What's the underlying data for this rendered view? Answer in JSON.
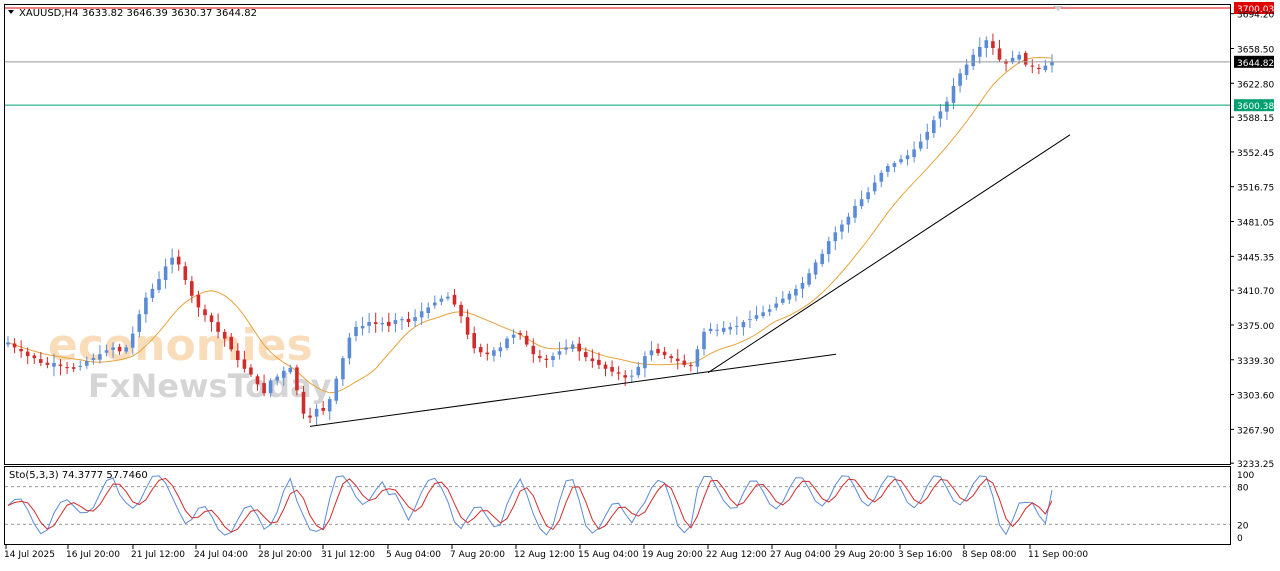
{
  "header": {
    "symbol": "XAUUSD,H4",
    "ohlc": "3633.82 3646.39 3630.37 3644.82"
  },
  "watermark": {
    "line1": "economies",
    "line2": "FxNewsToday"
  },
  "chart_data": {
    "type": "candlestick",
    "symbol": "XAUUSD",
    "timeframe": "H4",
    "grid": false,
    "price_axis": {
      "range": [
        3233.25,
        3700.03
      ],
      "ticks": [
        3694.2,
        3658.5,
        3622.8,
        3588.15,
        3552.45,
        3516.75,
        3481.05,
        3445.35,
        3410.7,
        3375.0,
        3339.3,
        3303.6,
        3267.9,
        3233.25
      ],
      "tick_labels": [
        "3694.20",
        "3658.50",
        "3622.80",
        "3588.15",
        "3552.45",
        "3516.75",
        "3481.05",
        "3445.35",
        "3410.70",
        "3375.00",
        "3339.30",
        "3303.60",
        "3267.90",
        "3233.25"
      ]
    },
    "time_axis": {
      "labels": [
        "14 Jul 2025",
        "16 Jul 20:00",
        "21 Jul 12:00",
        "24 Jul 04:00",
        "28 Jul 20:00",
        "31 Jul 12:00",
        "5 Aug 04:00",
        "7 Aug 20:00",
        "12 Aug 12:00",
        "15 Aug 04:00",
        "19 Aug 20:00",
        "22 Aug 12:00",
        "27 Aug 04:00",
        "29 Aug 20:00",
        "3 Sep 16:00",
        "8 Sep 08:00",
        "11 Sep 00:00"
      ]
    },
    "horizontal_lines": [
      {
        "price": 3700.03,
        "label": "3700.03",
        "color": "#e00000"
      },
      {
        "price": 3644.82,
        "label": "3644.82",
        "color": "#999999",
        "current": true
      },
      {
        "price": 3600.38,
        "label": "3600.38",
        "color": "#00a070"
      }
    ],
    "trendlines": [
      {
        "from": [
          "28 Jul 20:00",
          3271
        ],
        "to": [
          "22 Aug 12:00",
          3345
        ]
      },
      {
        "from": [
          "22 Aug 12:00",
          3326
        ],
        "to": [
          "11 Sep 00:00",
          3570
        ]
      }
    ],
    "moving_average_color": "#e8a33c",
    "bull_color": "#5b8bd6",
    "bear_color": "#d22b2b",
    "closes": [
      3357,
      3352,
      3348,
      3343,
      3341,
      3336,
      3334,
      3336,
      3333,
      3331,
      3330,
      3333,
      3338,
      3341,
      3345,
      3349,
      3352,
      3348,
      3352,
      3366,
      3386,
      3403,
      3412,
      3422,
      3435,
      3444,
      3437,
      3421,
      3405,
      3393,
      3385,
      3378,
      3368,
      3361,
      3350,
      3339,
      3330,
      3324,
      3314,
      3305,
      3318,
      3322,
      3328,
      3331,
      3308,
      3284,
      3280,
      3289,
      3287,
      3299,
      3320,
      3341,
      3362,
      3373,
      3374,
      3378,
      3376,
      3377,
      3374,
      3380,
      3381,
      3378,
      3383,
      3389,
      3393,
      3398,
      3402,
      3404,
      3396,
      3384,
      3365,
      3351,
      3347,
      3345,
      3349,
      3352,
      3361,
      3365,
      3365,
      3355,
      3345,
      3341,
      3339,
      3343,
      3348,
      3352,
      3355,
      3348,
      3342,
      3338,
      3334,
      3330,
      3327,
      3325,
      3321,
      3323,
      3332,
      3343,
      3349,
      3346,
      3344,
      3341,
      3338,
      3334,
      3333,
      3350,
      3368,
      3371,
      3370,
      3372,
      3373,
      3374,
      3378,
      3381,
      3385,
      3388,
      3391,
      3397,
      3402,
      3407,
      3412,
      3418,
      3428,
      3439,
      3448,
      3461,
      3470,
      3478,
      3486,
      3497,
      3504,
      3511,
      3521,
      3531,
      3538,
      3541,
      3545,
      3549,
      3555,
      3563,
      3573,
      3585,
      3594,
      3604,
      3620,
      3633,
      3642,
      3652,
      3660,
      3667,
      3659,
      3647,
      3643,
      3649,
      3652,
      3642,
      3640,
      3638,
      3641,
      3645
    ],
    "stochastic": {
      "label": "Sto(5,3,3) 74.3777 57.7460",
      "k": 74.3777,
      "d": 57.746,
      "levels": [
        80,
        20
      ],
      "scale_labels": [
        "100",
        "80",
        "20",
        "0"
      ],
      "k_color": "#5b8bd6",
      "d_color": "#d22b2b"
    }
  }
}
